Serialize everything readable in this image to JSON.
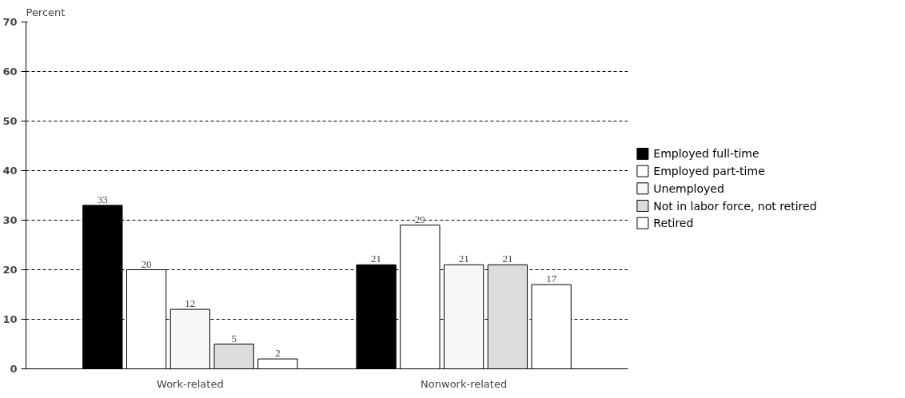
{
  "chart_data": {
    "type": "bar",
    "ylabel": "Percent",
    "categories": [
      "Work-related",
      "Nonwork-related"
    ],
    "series": [
      {
        "name": "Employed full-time",
        "color": "#000000",
        "values": [
          33,
          21
        ]
      },
      {
        "name": "Employed part-time",
        "color": "#ffffff",
        "values": [
          20,
          29
        ]
      },
      {
        "name": "Unemployed",
        "color": "#f7f7f7",
        "values": [
          12,
          21
        ]
      },
      {
        "name": "Not in labor force, not retired",
        "color": "#dddddd",
        "values": [
          5,
          21
        ]
      },
      {
        "name": "Retired",
        "color": "#ffffff",
        "values": [
          2,
          17
        ]
      }
    ],
    "ylim": [
      0,
      70
    ],
    "yticks": [
      0,
      10,
      20,
      30,
      40,
      50,
      60,
      70
    ],
    "grid": "y",
    "legend": "right",
    "data_labels": true
  }
}
